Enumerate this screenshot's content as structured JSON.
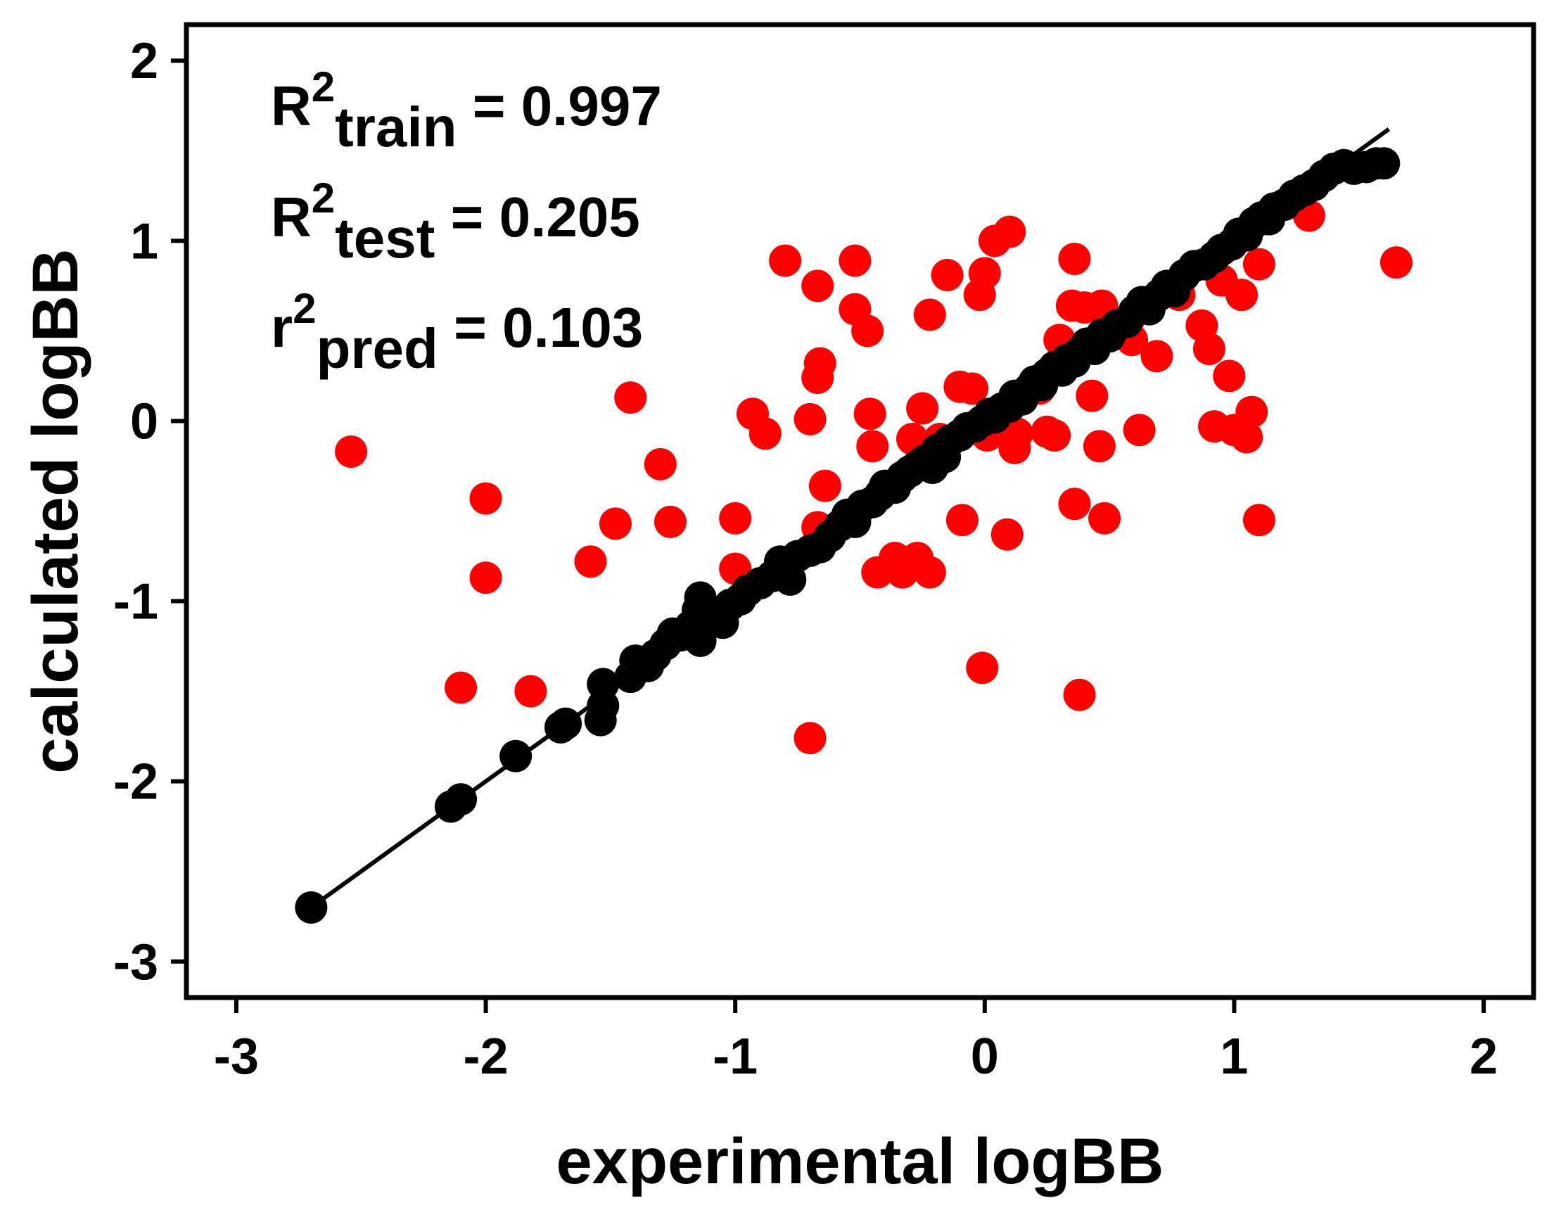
{
  "chart_data": {
    "type": "scatter",
    "title": "",
    "xlabel": "experimental logBB",
    "ylabel": "calculated logBB",
    "xlim": [
      -3.2,
      2.2
    ],
    "ylim": [
      -3.2,
      2.2
    ],
    "xticks": [
      -3,
      -2,
      -1,
      0,
      1,
      2
    ],
    "yticks": [
      -3,
      -2,
      -1,
      0,
      1,
      2
    ],
    "xtick_labels": [
      "-3",
      "-2",
      "-1",
      "0",
      "1",
      "2"
    ],
    "ytick_labels": [
      "-3",
      "-2",
      "-1",
      "0",
      "1",
      "2"
    ],
    "grid": false,
    "legend": "none",
    "annotations": [
      {
        "base": "R",
        "sup": "2",
        "sub": "train",
        "rest": " = 0.997"
      },
      {
        "base": "R",
        "sup": "2",
        "sub": "test",
        "rest": " = 0.205"
      },
      {
        "base": "r",
        "sup": "2",
        "sub": "pred",
        "rest": " = 0.103"
      }
    ],
    "fit_line": {
      "x": [
        -2.7,
        1.62
      ],
      "y": [
        -2.7,
        1.62
      ],
      "color": "#000000"
    },
    "series": [
      {
        "name": "training set",
        "color": "#000000",
        "points": [
          [
            -2.7,
            -2.7
          ],
          [
            -2.14,
            -2.14
          ],
          [
            -2.1,
            -2.1
          ],
          [
            -1.88,
            -1.86
          ],
          [
            -1.7,
            -1.7
          ],
          [
            -1.68,
            -1.68
          ],
          [
            -1.54,
            -1.66
          ],
          [
            -1.53,
            -1.58
          ],
          [
            -1.53,
            -1.46
          ],
          [
            -1.42,
            -1.42
          ],
          [
            -1.4,
            -1.33
          ],
          [
            -1.35,
            -1.36
          ],
          [
            -1.32,
            -1.3
          ],
          [
            -1.28,
            -1.24
          ],
          [
            -1.25,
            -1.18
          ],
          [
            -1.22,
            -1.19
          ],
          [
            -1.18,
            -1.14
          ],
          [
            -1.14,
            -1.22
          ],
          [
            -1.15,
            -1.05
          ],
          [
            -1.14,
            -0.98
          ],
          [
            -1.1,
            -1.1
          ],
          [
            -1.05,
            -1.12
          ],
          [
            -1.02,
            -1.02
          ],
          [
            -0.98,
            -0.99
          ],
          [
            -0.95,
            -0.94
          ],
          [
            -0.9,
            -0.9
          ],
          [
            -0.85,
            -0.86
          ],
          [
            -0.82,
            -0.78
          ],
          [
            -0.78,
            -0.88
          ],
          [
            -0.75,
            -0.75
          ],
          [
            -0.7,
            -0.72
          ],
          [
            -0.66,
            -0.7
          ],
          [
            -0.62,
            -0.64
          ],
          [
            -0.58,
            -0.58
          ],
          [
            -0.55,
            -0.52
          ],
          [
            -0.52,
            -0.56
          ],
          [
            -0.49,
            -0.47
          ],
          [
            -0.45,
            -0.45
          ],
          [
            -0.42,
            -0.41
          ],
          [
            -0.4,
            -0.36
          ],
          [
            -0.36,
            -0.37
          ],
          [
            -0.33,
            -0.31
          ],
          [
            -0.3,
            -0.28
          ],
          [
            -0.27,
            -0.25
          ],
          [
            -0.24,
            -0.22
          ],
          [
            -0.21,
            -0.26
          ],
          [
            -0.19,
            -0.16
          ],
          [
            -0.16,
            -0.2
          ],
          [
            -0.14,
            -0.11
          ],
          [
            -0.1,
            -0.08
          ],
          [
            -0.07,
            -0.04
          ],
          [
            -0.04,
            -0.03
          ],
          [
            -0.01,
            0.0
          ],
          [
            0.02,
            0.04
          ],
          [
            0.04,
            0.02
          ],
          [
            0.07,
            0.07
          ],
          [
            0.1,
            0.08
          ],
          [
            0.12,
            0.14
          ],
          [
            0.15,
            0.12
          ],
          [
            0.18,
            0.18
          ],
          [
            0.2,
            0.22
          ],
          [
            0.23,
            0.2
          ],
          [
            0.25,
            0.26
          ],
          [
            0.28,
            0.3
          ],
          [
            0.31,
            0.28
          ],
          [
            0.33,
            0.34
          ],
          [
            0.36,
            0.33
          ],
          [
            0.38,
            0.38
          ],
          [
            0.41,
            0.43
          ],
          [
            0.44,
            0.4
          ],
          [
            0.47,
            0.48
          ],
          [
            0.5,
            0.47
          ],
          [
            0.53,
            0.53
          ],
          [
            0.57,
            0.55
          ],
          [
            0.6,
            0.61
          ],
          [
            0.63,
            0.66
          ],
          [
            0.66,
            0.62
          ],
          [
            0.7,
            0.7
          ],
          [
            0.73,
            0.75
          ],
          [
            0.76,
            0.72
          ],
          [
            0.8,
            0.81
          ],
          [
            0.84,
            0.86
          ],
          [
            0.88,
            0.87
          ],
          [
            0.92,
            0.91
          ],
          [
            0.95,
            0.95
          ],
          [
            0.99,
            0.98
          ],
          [
            1.02,
            1.04
          ],
          [
            1.05,
            1.03
          ],
          [
            1.08,
            1.1
          ],
          [
            1.11,
            1.13
          ],
          [
            1.14,
            1.12
          ],
          [
            1.16,
            1.18
          ],
          [
            1.2,
            1.2
          ],
          [
            1.24,
            1.25
          ],
          [
            1.28,
            1.28
          ],
          [
            1.32,
            1.31
          ],
          [
            1.36,
            1.36
          ],
          [
            1.4,
            1.4
          ],
          [
            1.44,
            1.42
          ],
          [
            1.48,
            1.4
          ],
          [
            1.53,
            1.41
          ],
          [
            1.57,
            1.43
          ],
          [
            1.6,
            1.43
          ]
        ]
      },
      {
        "name": "test set",
        "color": "#ff0000",
        "points": [
          [
            -2.54,
            -0.17
          ],
          [
            -2.0,
            -0.43
          ],
          [
            -2.0,
            -0.87
          ],
          [
            -2.1,
            -1.48
          ],
          [
            -1.82,
            -1.5
          ],
          [
            -1.58,
            -0.78
          ],
          [
            -1.48,
            -0.57
          ],
          [
            -1.42,
            0.13
          ],
          [
            -1.3,
            -0.24
          ],
          [
            -1.26,
            -0.56
          ],
          [
            -1.0,
            -0.54
          ],
          [
            -1.0,
            -0.82
          ],
          [
            -0.93,
            0.04
          ],
          [
            -0.88,
            -0.07
          ],
          [
            -0.8,
            0.89
          ],
          [
            -0.67,
            0.75
          ],
          [
            -0.66,
            0.32
          ],
          [
            -0.67,
            0.24
          ],
          [
            -0.7,
            0.01
          ],
          [
            -0.64,
            -0.36
          ],
          [
            -0.67,
            -0.59
          ],
          [
            -0.7,
            -1.76
          ],
          [
            -0.52,
            0.89
          ],
          [
            -0.52,
            0.62
          ],
          [
            -0.47,
            0.5
          ],
          [
            -0.46,
            0.04
          ],
          [
            -0.45,
            -0.14
          ],
          [
            -0.43,
            -0.84
          ],
          [
            -0.36,
            -0.76
          ],
          [
            -0.33,
            -0.84
          ],
          [
            -0.27,
            -0.76
          ],
          [
            -0.22,
            -0.84
          ],
          [
            -0.29,
            -0.1
          ],
          [
            -0.25,
            0.07
          ],
          [
            -0.22,
            0.59
          ],
          [
            -0.15,
            0.81
          ],
          [
            -0.18,
            -0.1
          ],
          [
            -0.1,
            0.19
          ],
          [
            -0.09,
            -0.55
          ],
          [
            -0.05,
            0.18
          ],
          [
            -0.02,
            -0.05
          ],
          [
            0.0,
            0.82
          ],
          [
            -0.02,
            0.7
          ],
          [
            0.04,
            1.0
          ],
          [
            0.1,
            1.05
          ],
          [
            0.01,
            -0.08
          ],
          [
            0.09,
            -0.63
          ],
          [
            0.13,
            -0.07
          ],
          [
            0.12,
            -0.15
          ],
          [
            -0.01,
            -1.37
          ],
          [
            0.22,
            0.18
          ],
          [
            0.25,
            -0.06
          ],
          [
            0.28,
            -0.08
          ],
          [
            0.3,
            0.45
          ],
          [
            0.35,
            0.64
          ],
          [
            0.36,
            0.9
          ],
          [
            0.4,
            0.63
          ],
          [
            0.43,
            0.14
          ],
          [
            0.47,
            0.64
          ],
          [
            0.36,
            -0.46
          ],
          [
            0.46,
            -0.14
          ],
          [
            0.48,
            -0.54
          ],
          [
            0.38,
            -1.52
          ],
          [
            0.58,
            0.57
          ],
          [
            0.59,
            0.45
          ],
          [
            0.62,
            -0.05
          ],
          [
            0.69,
            0.36
          ],
          [
            0.78,
            0.7
          ],
          [
            0.87,
            0.53
          ],
          [
            0.9,
            0.4
          ],
          [
            0.92,
            -0.03
          ],
          [
            0.95,
            0.78
          ],
          [
            0.98,
            0.25
          ],
          [
            1.0,
            -0.05
          ],
          [
            1.03,
            0.7
          ],
          [
            1.05,
            -0.09
          ],
          [
            1.07,
            0.05
          ],
          [
            1.1,
            0.87
          ],
          [
            1.1,
            -0.55
          ],
          [
            1.3,
            1.14
          ],
          [
            1.65,
            0.88
          ]
        ]
      }
    ]
  }
}
